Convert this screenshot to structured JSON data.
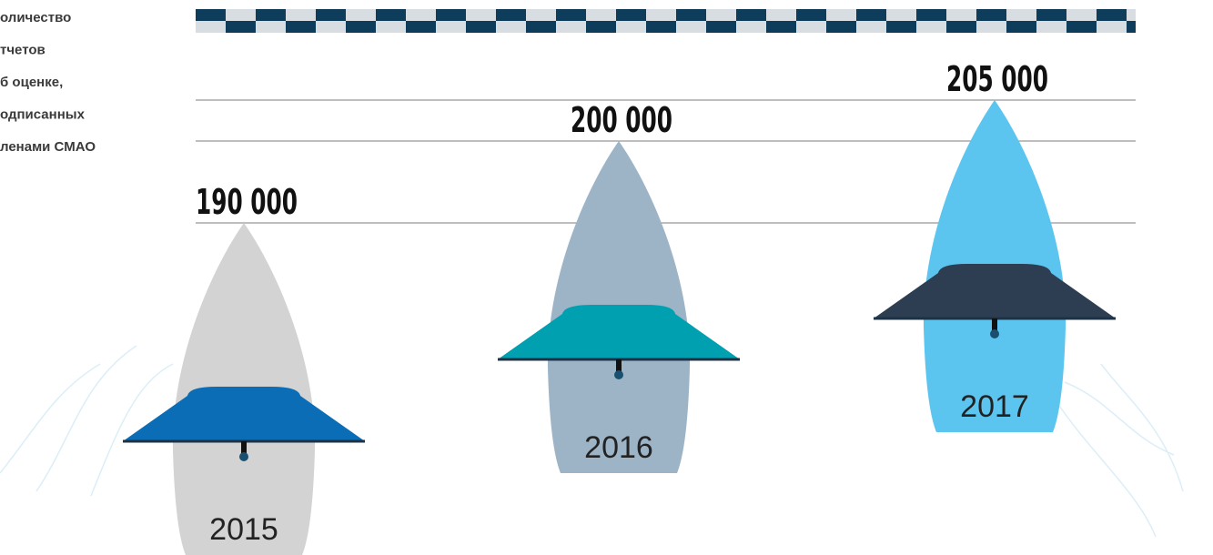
{
  "title_lines": [
    "оличество",
    "тчетов",
    "б оценке,",
    "одписанных",
    "ленами СМАО"
  ],
  "chart_data": {
    "type": "boat",
    "categories": [
      "2015",
      "2016",
      "2017"
    ],
    "values": [
      190000,
      200000,
      205000
    ],
    "value_labels": [
      "190 000",
      "200 000",
      "205 000"
    ],
    "ylim": [
      180000,
      210000
    ],
    "colors": [
      "#d3d3d3",
      "#9db4c7",
      "#5cc5ef"
    ],
    "umbrella_colors": [
      "#0b6db6",
      "#00a0b1",
      "#2e3e52"
    ]
  }
}
